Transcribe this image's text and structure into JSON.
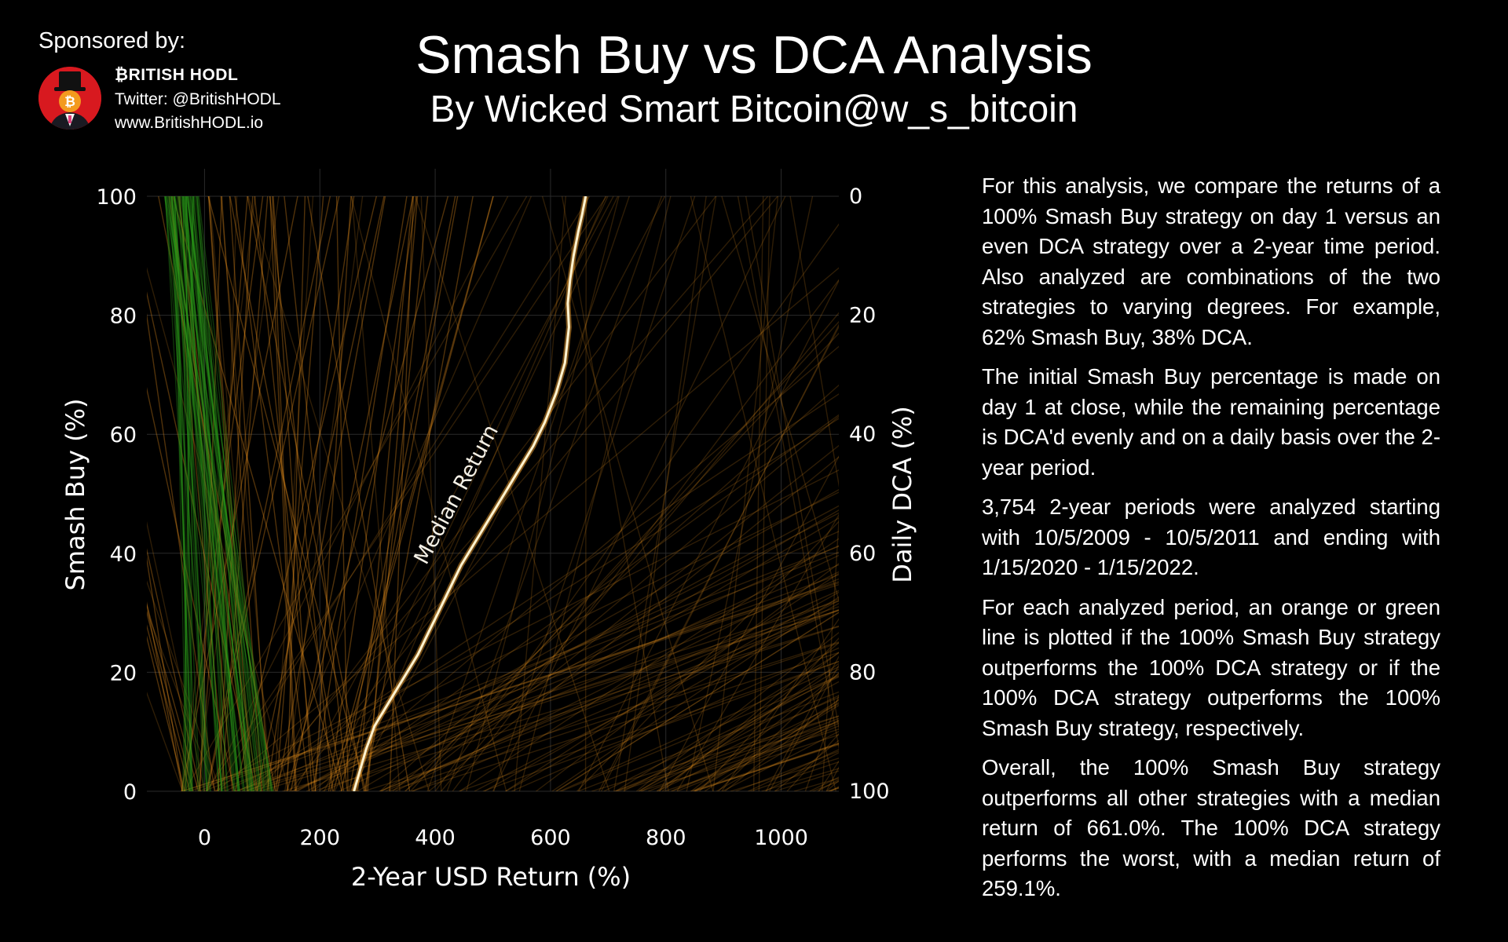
{
  "sponsor": {
    "label": "Sponsored by:",
    "name": "₿RITISH HODL",
    "twitter": "Twitter: @BritishHODL",
    "website": "www.BritishHODL.io"
  },
  "header": {
    "title": "Smash Buy vs DCA Analysis",
    "subtitle": "By Wicked Smart Bitcoin@w_s_bitcoin"
  },
  "description": {
    "paragraphs": [
      "For this analysis, we compare the returns of a 100% Smash Buy strategy on day 1 versus an even DCA strategy over a 2-year time period. Also analyzed are combinations of the two strategies to varying degrees. For example, 62% Smash Buy, 38% DCA.",
      "The initial Smash Buy percentage is made on day 1 at close, while the remaining percentage is DCA'd evenly and on a daily basis over the 2-year period.",
      "3,754 2-year periods were analyzed starting with 10/5/2009 - 10/5/2011 and ending with 1/15/2020 - 1/15/2022.",
      "For each analyzed period, an orange or green line is plotted if the 100% Smash Buy strategy outperforms the 100% DCA strategy or if the 100% DCA strategy outperforms the 100% Smash Buy strategy, respectively.",
      "Overall, the 100% Smash Buy strategy outperforms all other strategies with a median return of 661.0%. The 100% DCA strategy performs the worst, with a median return of 259.1%."
    ]
  },
  "colors": {
    "smash_outperforms": "#e8901c",
    "dca_outperforms": "#2a9a1a",
    "median": "#fff3d0",
    "background": "#000000"
  },
  "chart_data": {
    "type": "line",
    "xlabel": "2-Year USD Return (%)",
    "ylabel": "Smash Buy (%)",
    "y2label": "Daily DCA (%)",
    "xlim": [
      -100,
      1100
    ],
    "ylim": [
      0,
      100
    ],
    "y2lim": [
      100,
      0
    ],
    "xticks": [
      0,
      200,
      400,
      600,
      800,
      1000
    ],
    "yticks": [
      0,
      20,
      40,
      60,
      80,
      100
    ],
    "y2ticks": [
      0,
      20,
      40,
      60,
      80,
      100
    ],
    "grid": true,
    "annotation": "Median Return",
    "series": [
      {
        "name": "Median Return",
        "x": [
          259,
          268,
          280,
          295,
          320,
          345,
          370,
          390,
          405,
          425,
          445,
          470,
          495,
          520,
          545,
          570,
          590,
          610,
          625,
          632,
          630,
          634,
          640,
          648,
          655,
          661
        ],
        "y": [
          0,
          3,
          7,
          11,
          15,
          19,
          23,
          27,
          30,
          34,
          38,
          42,
          46,
          50,
          54,
          58,
          62,
          67,
          72,
          78,
          82,
          86,
          90,
          94,
          97,
          100
        ]
      }
    ]
  }
}
